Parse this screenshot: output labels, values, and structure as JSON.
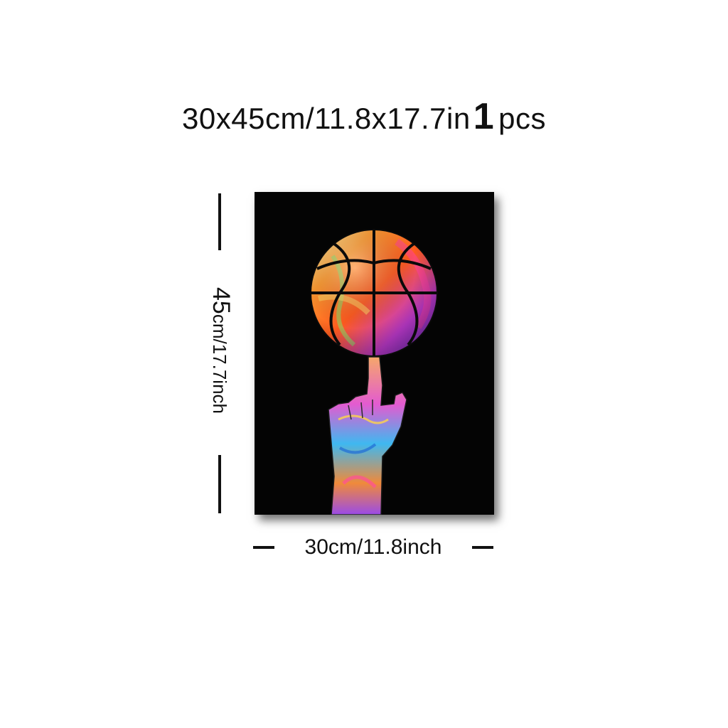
{
  "header": {
    "size_text": "30x45cm/11.8x17.7in",
    "quantity": "1",
    "quantity_unit": "pcs"
  },
  "dimensions": {
    "height_number": "45",
    "height_rest": "cm/17.7inch",
    "width_text": "30cm/11.8inch"
  },
  "artwork": {
    "subject": "basketball-spinning-on-finger-icon",
    "background_color": "#040404"
  }
}
